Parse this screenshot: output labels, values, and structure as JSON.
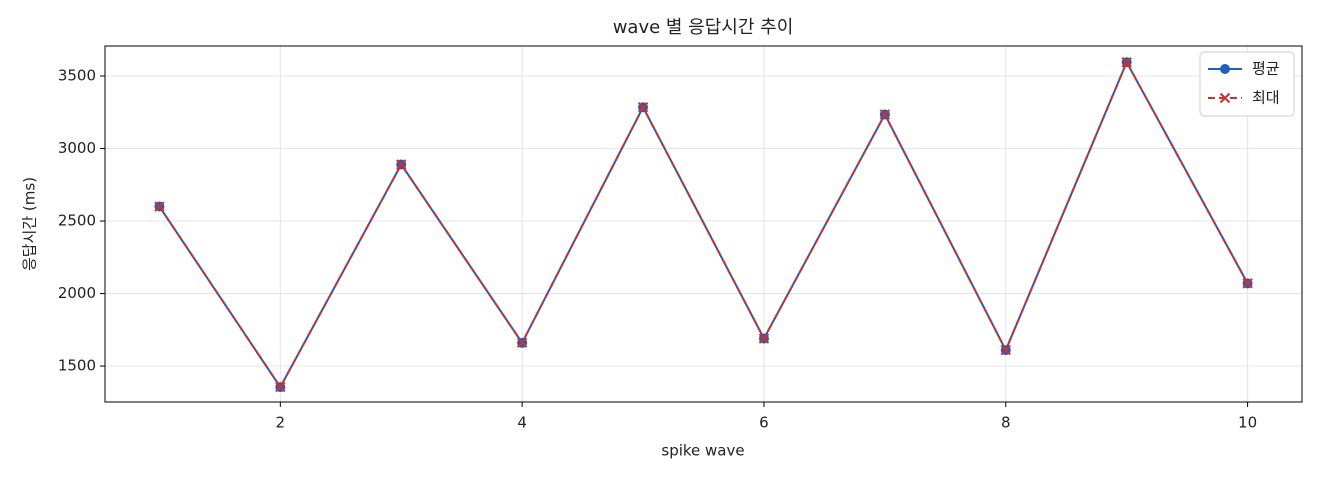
{
  "chart_data": {
    "type": "line",
    "title": "wave 별 응답시간 추이",
    "xlabel": "spike wave",
    "ylabel": "응답시간 (ms)",
    "x": [
      1,
      2,
      3,
      4,
      5,
      6,
      7,
      8,
      9,
      10
    ],
    "series": [
      {
        "name": "평균",
        "color": "#1f5fbf",
        "marker": "o",
        "linestyle": "solid",
        "values": [
          2600,
          1355,
          2890,
          1660,
          3285,
          1690,
          3235,
          1610,
          3595,
          2070
        ]
      },
      {
        "name": "최대",
        "color": "#c83232",
        "marker": "x",
        "linestyle": "dashed",
        "values": [
          2600,
          1355,
          2890,
          1660,
          3285,
          1690,
          3235,
          1610,
          3595,
          2070
        ]
      }
    ],
    "xlim": [
      0.55,
      10.45
    ],
    "xticks": [
      2,
      4,
      6,
      8,
      10
    ],
    "ylim": [
      1252,
      3707
    ],
    "yticks": [
      1500,
      2000,
      2500,
      3000,
      3500
    ],
    "grid": true,
    "legend": "upper right"
  }
}
